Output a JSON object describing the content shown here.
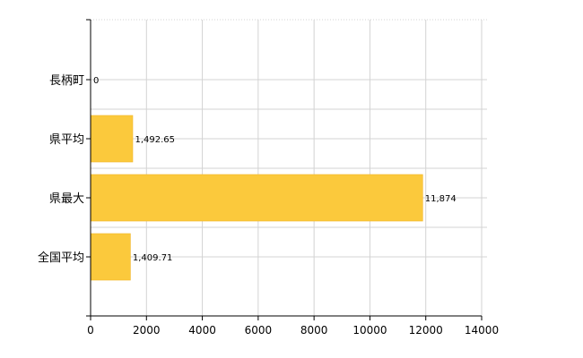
{
  "chart_data": {
    "type": "bar",
    "orientation": "horizontal",
    "categories": [
      "長柄町",
      "県平均",
      "県最大",
      "全国平均"
    ],
    "values": [
      0,
      1492.65,
      11874,
      1409.71
    ],
    "value_labels": [
      "0",
      "1,492.65",
      "11,874",
      "1,409.71"
    ],
    "xlim": [
      0,
      14000
    ],
    "x_ticks": [
      0,
      2000,
      4000,
      6000,
      8000,
      10000,
      12000,
      14000
    ],
    "x_tick_labels": [
      "0",
      "2000",
      "4000",
      "6000",
      "8000",
      "10000",
      "12000",
      "14000"
    ],
    "grid": true,
    "legend": "none",
    "colors": {
      "bar": "#FBC93C",
      "bar_edge": "#F2B628"
    }
  }
}
